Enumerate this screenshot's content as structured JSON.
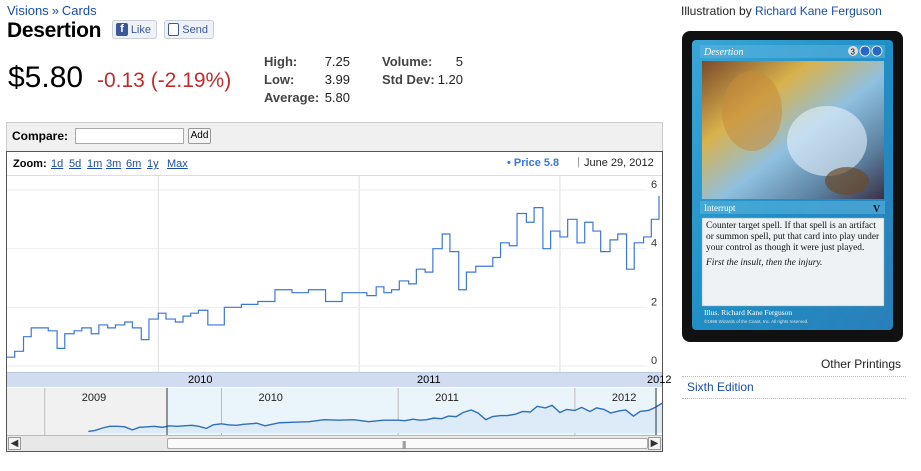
{
  "breadcrumb": {
    "root": "Visions",
    "separator": "»",
    "current": "Cards"
  },
  "title": "Desertion",
  "social": {
    "like": "Like",
    "like_icon": "f",
    "send": "Send"
  },
  "price": {
    "current": "$5.80",
    "change": "-0.13 (-2.19%)"
  },
  "stats": {
    "high_label": "High:",
    "high": "7.25",
    "low_label": "Low:",
    "low": "3.99",
    "average_label": "Average:",
    "average": "5.80",
    "volume_label": "Volume:",
    "volume": "5",
    "stddev_label": "Std Dev:",
    "stddev": "1.20"
  },
  "compare": {
    "label": "Compare:",
    "value": "",
    "add_label": "Add"
  },
  "zoom": {
    "label": "Zoom:",
    "options": [
      "1d",
      "5d",
      "1m",
      "3m",
      "6m",
      "1y",
      "Max"
    ]
  },
  "legend": {
    "bullet": "•",
    "text": "Price 5.8",
    "separator": "|",
    "date": "June 29, 2012"
  },
  "chart_data": {
    "type": "line",
    "series": [
      {
        "name": "Price",
        "x": [
          "2009-04-01",
          "2009-04-15",
          "2009-05-01",
          "2009-05-15",
          "2009-06-01",
          "2009-06-15",
          "2009-07-01",
          "2009-07-15",
          "2009-08-01",
          "2009-08-15",
          "2009-09-01",
          "2009-09-15",
          "2009-10-01",
          "2009-10-15",
          "2009-11-01",
          "2009-11-15",
          "2009-12-01",
          "2009-12-15",
          "2010-01-01",
          "2010-01-15",
          "2010-02-01",
          "2010-02-15",
          "2010-03-01",
          "2010-03-15",
          "2010-04-01",
          "2010-05-01",
          "2010-06-01",
          "2010-07-01",
          "2010-08-01",
          "2010-09-01",
          "2010-10-01",
          "2010-11-01",
          "2010-12-01",
          "2011-01-01",
          "2011-01-15",
          "2011-02-01",
          "2011-02-15",
          "2011-03-01",
          "2011-03-15",
          "2011-04-01",
          "2011-04-15",
          "2011-05-01",
          "2011-05-15",
          "2011-06-01",
          "2011-06-15",
          "2011-07-01",
          "2011-07-15",
          "2011-08-01",
          "2011-08-15",
          "2011-09-01",
          "2011-09-15",
          "2011-10-01",
          "2011-10-15",
          "2011-11-01",
          "2011-11-15",
          "2011-12-01",
          "2011-12-15",
          "2012-01-01",
          "2012-01-15",
          "2012-02-01",
          "2012-02-15",
          "2012-03-01",
          "2012-03-15",
          "2012-04-01",
          "2012-04-15",
          "2012-05-01",
          "2012-05-15",
          "2012-06-01",
          "2012-06-15",
          "2012-06-29"
        ],
        "values": [
          0.3,
          0.5,
          1.0,
          1.3,
          1.3,
          1.2,
          0.6,
          1.1,
          1.2,
          1.3,
          1.1,
          1.4,
          1.3,
          1.4,
          1.5,
          1.3,
          0.9,
          1.6,
          1.8,
          1.6,
          1.5,
          1.7,
          1.8,
          1.9,
          1.4,
          2.0,
          2.1,
          2.2,
          2.6,
          2.5,
          2.6,
          2.2,
          2.5,
          2.5,
          2.4,
          2.7,
          2.5,
          2.6,
          2.9,
          2.8,
          3.3,
          3.2,
          4.0,
          4.5,
          3.9,
          2.6,
          3.2,
          3.4,
          3.4,
          3.7,
          4.2,
          4.1,
          5.2,
          4.9,
          5.4,
          4.0,
          4.6,
          4.4,
          5.0,
          4.2,
          4.9,
          4.6,
          3.9,
          4.3,
          4.5,
          3.3,
          4.2,
          4.4,
          5.0,
          5.8
        ]
      }
    ],
    "ylim": [
      0,
      6
    ],
    "y_ticks": [
      0,
      2,
      4,
      6
    ],
    "x_tick_labels": [
      "2010",
      "2011",
      "2012"
    ],
    "overview_x_labels": [
      "2009",
      "2010",
      "2011",
      "2012"
    ],
    "grid": true,
    "line_color": "#3b78d8"
  },
  "right": {
    "illus_prefix": "Illustration by",
    "artist": "Richard Kane Ferguson",
    "card": {
      "name": "Desertion",
      "cost": "3",
      "type": "Interrupt",
      "set_symbol": "V",
      "rules": "Counter target spell. If that spell is an artifact or summon spell, put that card into play under your control as though it were just played.",
      "flavor": "First the insult, then the injury.",
      "artist_line": "Illus. Richard Kane Ferguson",
      "copyright": "©1996 Wizards of the Coast, Inc. All rights reserved."
    },
    "other_printings_label": "Other Printings",
    "printings": [
      "Sixth Edition"
    ]
  },
  "colors": {
    "negative": "#c32b2b",
    "link": "#1a4da8",
    "card_blue": "#1f8fc6"
  }
}
